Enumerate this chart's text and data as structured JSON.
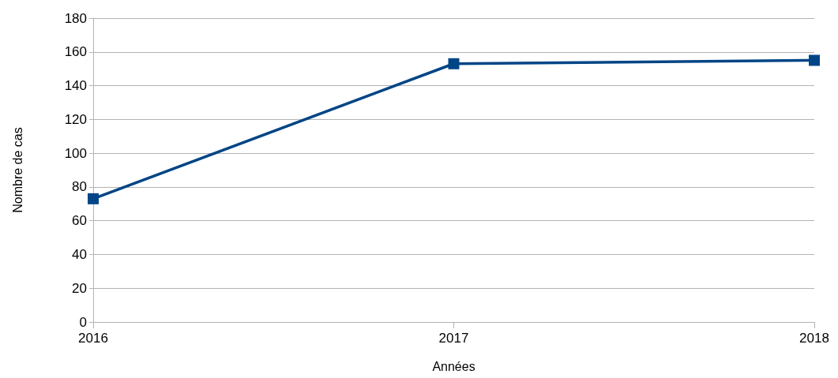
{
  "chart_data": {
    "type": "line",
    "xlabel": "Années",
    "ylabel": "Nombre de cas",
    "categories": [
      "2016",
      "2017",
      "2018"
    ],
    "series": [
      {
        "color": "#004586",
        "values": [
          73,
          153,
          155
        ]
      }
    ],
    "ylim": [
      0,
      180
    ],
    "yticks": [
      0,
      20,
      40,
      60,
      80,
      100,
      120,
      140,
      160,
      180
    ],
    "grid": "y",
    "marker": "square",
    "line_style": "solid"
  }
}
